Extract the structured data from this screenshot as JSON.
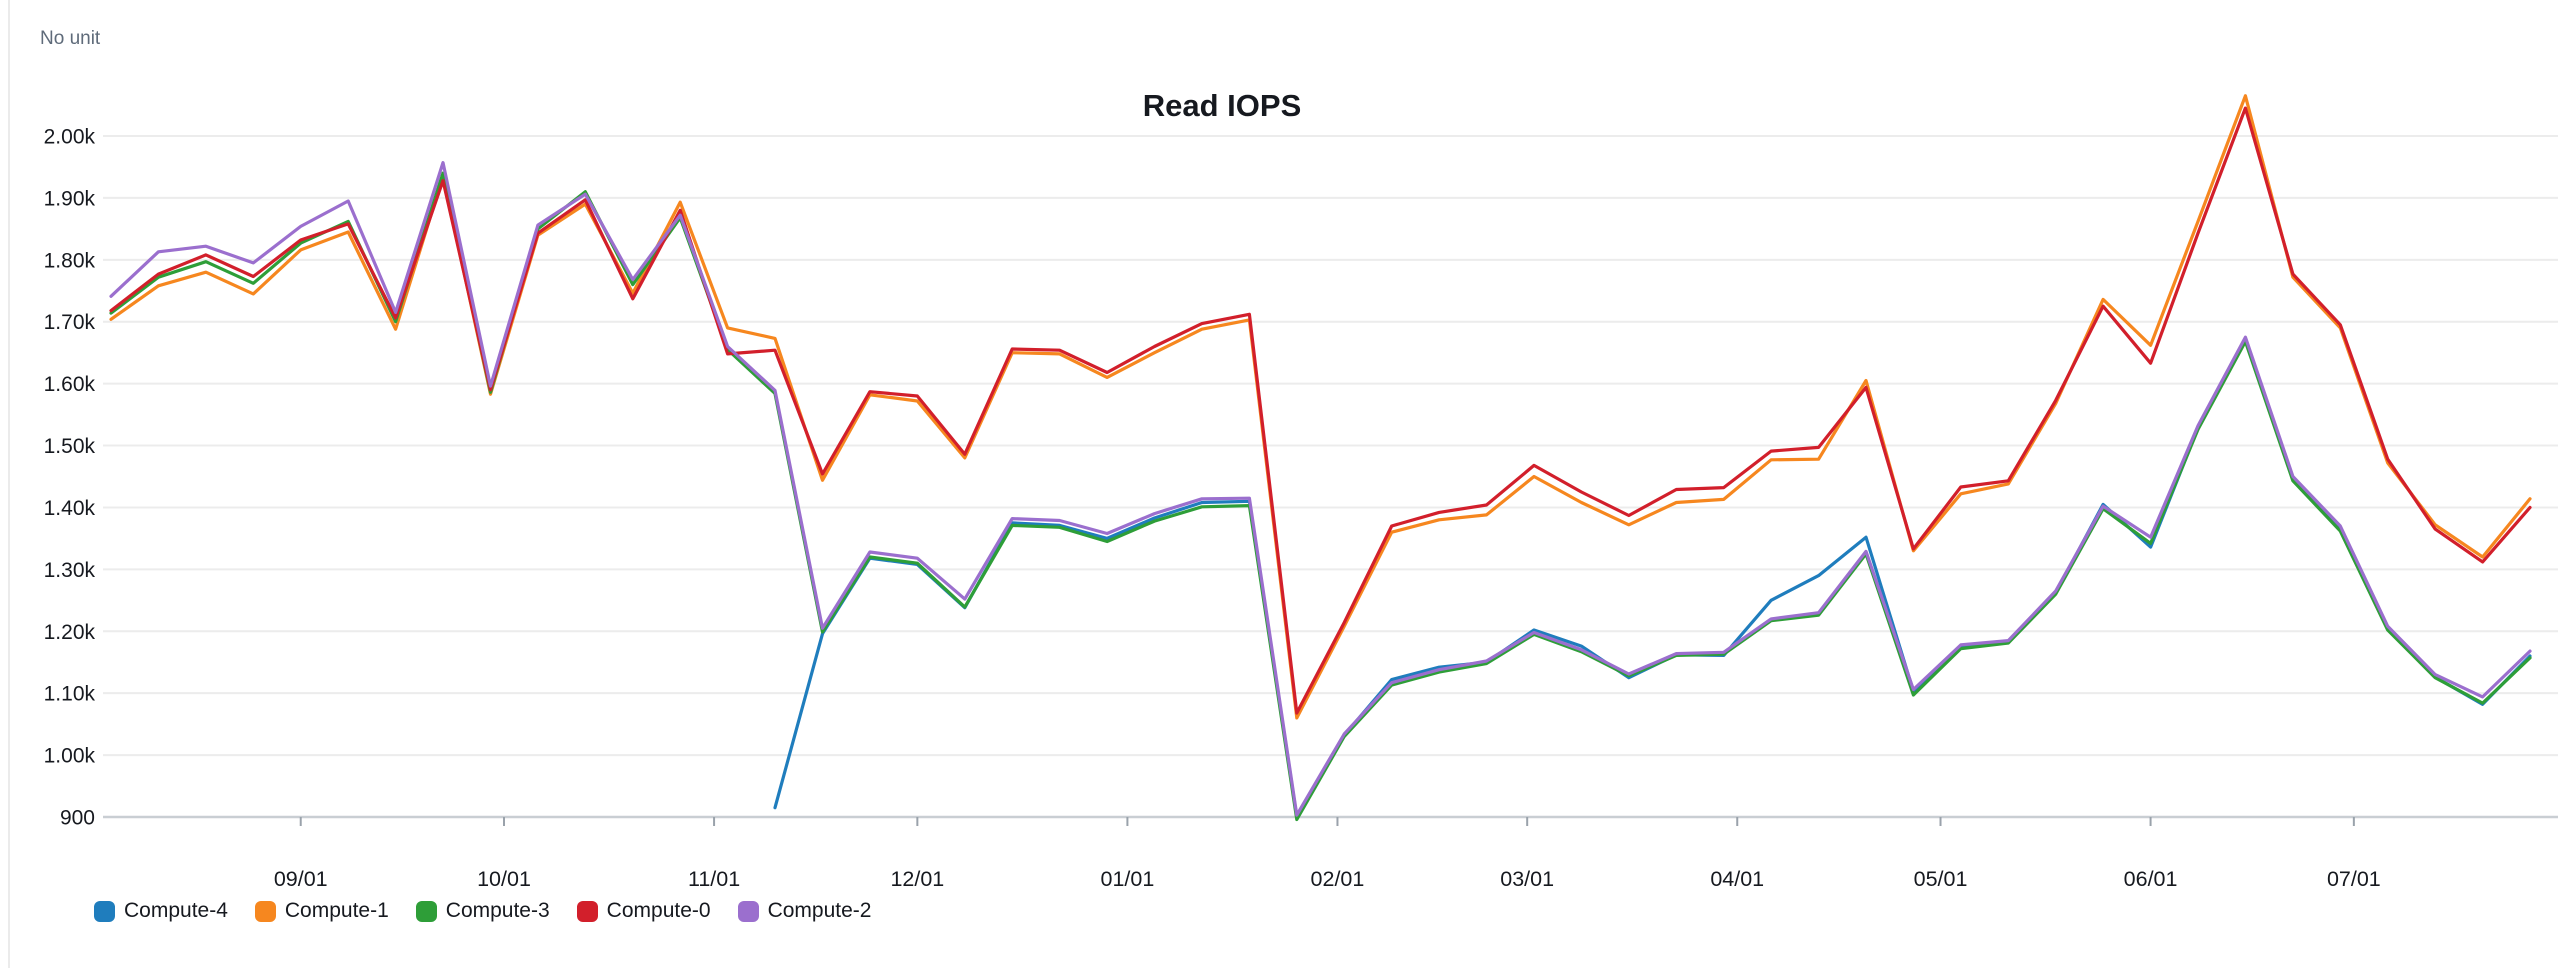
{
  "chart_data": {
    "type": "line",
    "title": "Read IOPS",
    "y_axis_unit": "No unit",
    "legend_position": "bottom-left",
    "grid": true,
    "ylim": [
      870,
      2080
    ],
    "y_ticks": [
      {
        "value": 2000,
        "label": "2.00k"
      },
      {
        "value": 1900,
        "label": "1.90k"
      },
      {
        "value": 1800,
        "label": "1.80k"
      },
      {
        "value": 1700,
        "label": "1.70k"
      },
      {
        "value": 1600,
        "label": "1.60k"
      },
      {
        "value": 1500,
        "label": "1.50k"
      },
      {
        "value": 1400,
        "label": "1.40k"
      },
      {
        "value": 1300,
        "label": "1.30k"
      },
      {
        "value": 1200,
        "label": "1.20k"
      },
      {
        "value": 1100,
        "label": "1.10k"
      },
      {
        "value": 1000,
        "label": "1.00k"
      },
      {
        "value": 900,
        "label": "900"
      }
    ],
    "x_ticks": [
      {
        "label": "09/01",
        "day": 28
      },
      {
        "label": "10/01",
        "day": 58
      },
      {
        "label": "11/01",
        "day": 89
      },
      {
        "label": "12/01",
        "day": 119
      },
      {
        "label": "01/01",
        "day": 150
      },
      {
        "label": "02/01",
        "day": 181
      },
      {
        "label": "03/01",
        "day": 209
      },
      {
        "label": "04/01",
        "day": 240
      },
      {
        "label": "05/01",
        "day": 270
      },
      {
        "label": "06/01",
        "day": 301
      },
      {
        "label": "07/01",
        "day": 331
      }
    ],
    "x_interval_days": 7,
    "dates": [
      "08/04",
      "08/11",
      "08/18",
      "08/25",
      "09/01",
      "09/08",
      "09/15",
      "09/22",
      "09/29",
      "10/06",
      "10/13",
      "10/20",
      "10/27",
      "11/03",
      "11/10",
      "11/17",
      "11/24",
      "12/01",
      "12/08",
      "12/15",
      "12/22",
      "12/29",
      "01/05",
      "01/12",
      "01/19",
      "01/26",
      "02/02",
      "02/09",
      "02/16",
      "02/23",
      "03/02",
      "03/09",
      "03/16",
      "03/23",
      "03/30",
      "04/06",
      "04/13",
      "04/20",
      "04/27",
      "05/04",
      "05/11",
      "05/18",
      "05/25",
      "06/01",
      "06/08",
      "06/15",
      "06/22",
      "06/29",
      "07/06",
      "07/13",
      "07/20",
      "07/27"
    ],
    "series": [
      {
        "name": "Compute-4",
        "color": "#1f7dbd",
        "values": [
          null,
          null,
          null,
          null,
          null,
          null,
          null,
          null,
          null,
          null,
          null,
          null,
          null,
          null,
          915,
          1196,
          1318,
          1308,
          1238,
          1375,
          1371,
          1350,
          1383,
          1408,
          1410,
          900,
          1032,
          1122,
          1142,
          1150,
          1202,
          1176,
          1125,
          1162,
          1161,
          1250,
          1290,
          1352,
          1103,
          1175,
          1183,
          1262,
          1405,
          1336,
          1528,
          1670,
          1445,
          1365,
          1204,
          1126,
          1082,
          1160
        ]
      },
      {
        "name": "Compute-1",
        "color": "#f6871f",
        "values": [
          1704,
          1758,
          1780,
          1745,
          1816,
          1845,
          1688,
          1935,
          1583,
          1840,
          1890,
          1746,
          1893,
          1690,
          1673,
          1444,
          1582,
          1572,
          1480,
          1650,
          1648,
          1610,
          1650,
          1688,
          1703,
          1060,
          1208,
          1360,
          1380,
          1388,
          1450,
          1408,
          1372,
          1408,
          1413,
          1477,
          1478,
          1605,
          1330,
          1422,
          1438,
          1568,
          1736,
          1662,
          1862,
          2065,
          1772,
          1690,
          1472,
          1372,
          1320,
          1414
        ]
      },
      {
        "name": "Compute-3",
        "color": "#2e9e38",
        "values": [
          1714,
          1772,
          1797,
          1762,
          1827,
          1862,
          1700,
          1940,
          1586,
          1850,
          1910,
          1760,
          1868,
          1655,
          1584,
          1199,
          1320,
          1310,
          1239,
          1371,
          1368,
          1345,
          1378,
          1401,
          1403,
          896,
          1030,
          1113,
          1134,
          1148,
          1195,
          1167,
          1128,
          1161,
          1163,
          1217,
          1226,
          1325,
          1097,
          1172,
          1181,
          1260,
          1398,
          1342,
          1526,
          1668,
          1443,
          1362,
          1202,
          1125,
          1084,
          1157
        ]
      },
      {
        "name": "Compute-0",
        "color": "#d21f2b",
        "values": [
          1718,
          1777,
          1808,
          1773,
          1832,
          1858,
          1706,
          1928,
          1590,
          1843,
          1897,
          1737,
          1880,
          1648,
          1654,
          1454,
          1587,
          1580,
          1486,
          1656,
          1654,
          1618,
          1660,
          1697,
          1712,
          1068,
          1214,
          1370,
          1392,
          1404,
          1468,
          1425,
          1387,
          1429,
          1432,
          1491,
          1497,
          1594,
          1333,
          1433,
          1443,
          1573,
          1725,
          1633,
          1843,
          2045,
          1777,
          1695,
          1478,
          1365,
          1312,
          1400
        ]
      },
      {
        "name": "Compute-2",
        "color": "#9b6fce",
        "values": [
          1741,
          1813,
          1822,
          1795,
          1854,
          1895,
          1715,
          1957,
          1596,
          1856,
          1906,
          1768,
          1872,
          1660,
          1589,
          1205,
          1328,
          1318,
          1252,
          1382,
          1379,
          1358,
          1390,
          1414,
          1415,
          903,
          1034,
          1117,
          1138,
          1152,
          1198,
          1170,
          1131,
          1164,
          1166,
          1220,
          1230,
          1329,
          1106,
          1178,
          1185,
          1265,
          1402,
          1352,
          1532,
          1675,
          1450,
          1370,
          1208,
          1130,
          1094,
          1168
        ]
      }
    ]
  }
}
